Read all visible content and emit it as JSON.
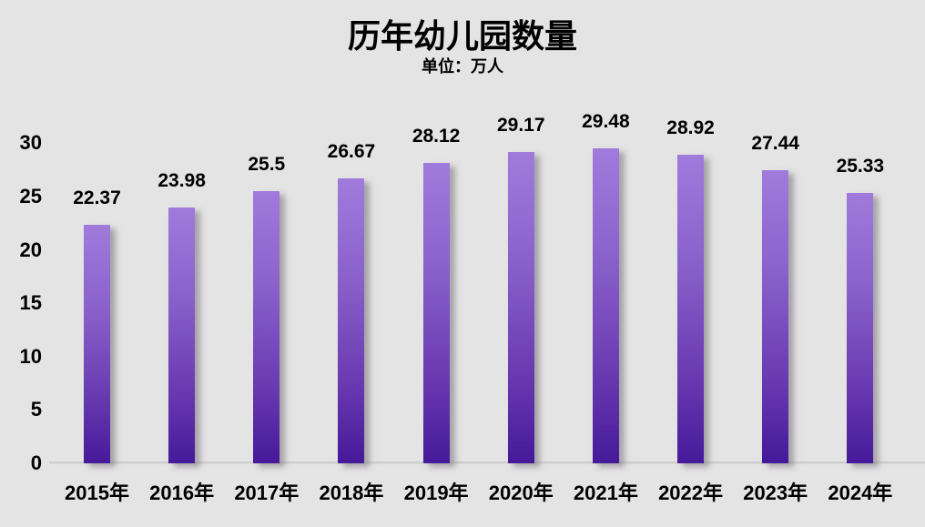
{
  "page": {
    "background_color": "#e5e4e4",
    "text_color": "#000000"
  },
  "chart_data": {
    "type": "bar",
    "title": "历年幼儿园数量",
    "unit_label": "单位：万人",
    "categories": [
      "2015年",
      "2016年",
      "2017年",
      "2018年",
      "2019年",
      "2020年",
      "2021年",
      "2022年",
      "2023年",
      "2024年"
    ],
    "values": [
      22.37,
      23.98,
      25.5,
      26.67,
      28.12,
      29.17,
      29.48,
      28.92,
      27.44,
      25.33
    ],
    "value_labels": [
      "22.37",
      "23.98",
      "25.5",
      "26.67",
      "28.12",
      "29.17",
      "29.48",
      "28.92",
      "27.44",
      "25.33"
    ],
    "xlabel": "",
    "ylabel": "",
    "yticks": [
      0,
      5,
      10,
      15,
      20,
      25,
      30
    ],
    "ylim": [
      0,
      30
    ],
    "grid": false,
    "legend": null,
    "bar_color_top": "#a07bdc",
    "bar_color_bottom": "#45199a",
    "bar_shadow_color": "#8f8c93",
    "label_color": "#000000",
    "axis_line_color": "#d2d1d0"
  }
}
